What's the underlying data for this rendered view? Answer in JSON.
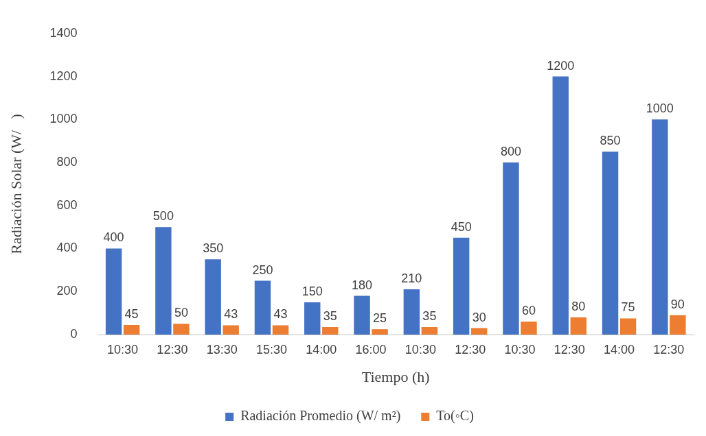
{
  "chart_data": {
    "type": "bar",
    "xlabel": "Tiempo (h)",
    "ylabel": "Radiación Solar (W/   )",
    "categories": [
      "10:30",
      "12:30",
      "13:30",
      "15:30",
      "14:00",
      "16:00",
      "10:30",
      "12:30",
      "10:30",
      "12:30",
      "14:00",
      "12:30"
    ],
    "series": [
      {
        "name": "Radiación Promedio (W/ m²)",
        "color": "#4472c4",
        "values": [
          400,
          500,
          350,
          250,
          150,
          180,
          210,
          450,
          800,
          1200,
          850,
          1000
        ]
      },
      {
        "name": "To(◦C)",
        "color": "#ed7d31",
        "values": [
          45,
          50,
          43,
          43,
          35,
          25,
          35,
          30,
          60,
          80,
          75,
          90
        ]
      }
    ],
    "ylim": [
      0,
      1400
    ],
    "yticks": [
      0,
      200,
      400,
      600,
      800,
      1000,
      1200,
      1400
    ],
    "grid": false,
    "legend": "bottom",
    "data_labels": true
  }
}
